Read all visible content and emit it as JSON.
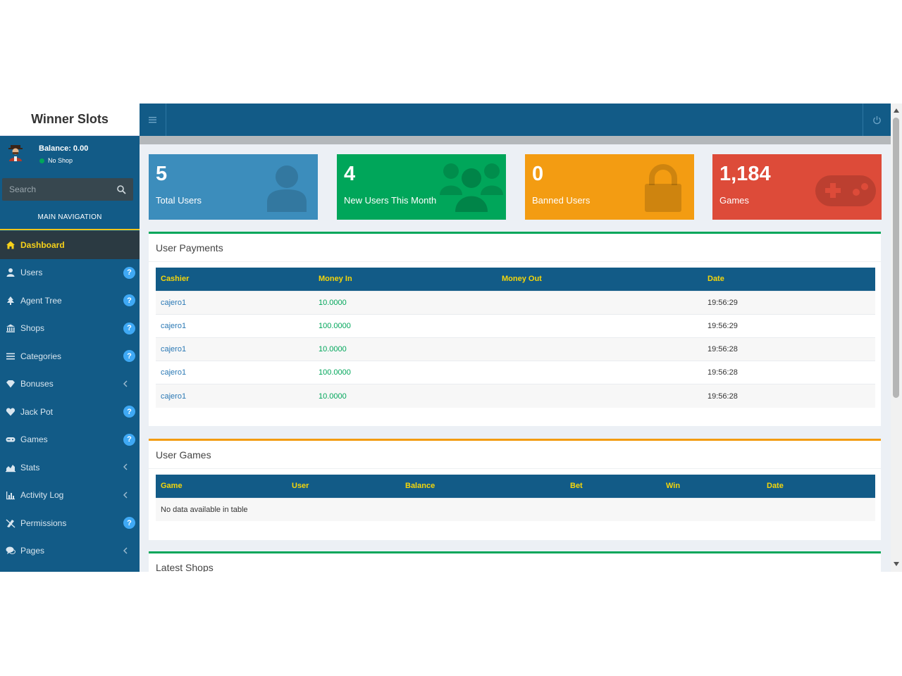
{
  "app": {
    "logo": "Winner Slots",
    "balance": "Balance: 0.00",
    "shop_status": "No Shop",
    "search_placeholder": "Search",
    "nav_header": "MAIN NAVIGATION"
  },
  "nav": [
    {
      "label": "Dashboard",
      "icon": "home-icon",
      "active": true,
      "suffix": "none"
    },
    {
      "label": "Users",
      "icon": "user-icon",
      "suffix": "help"
    },
    {
      "label": "Agent Tree",
      "icon": "tree-icon",
      "suffix": "help"
    },
    {
      "label": "Shops",
      "icon": "bank-icon",
      "suffix": "help"
    },
    {
      "label": "Categories",
      "icon": "list-icon",
      "suffix": "help"
    },
    {
      "label": "Bonuses",
      "icon": "diamond-icon",
      "suffix": "chevron"
    },
    {
      "label": "Jack Pot",
      "icon": "heart-diamond-icon",
      "suffix": "help"
    },
    {
      "label": "Games",
      "icon": "gamepad-icon",
      "suffix": "help"
    },
    {
      "label": "Stats",
      "icon": "area-chart-icon",
      "suffix": "chevron"
    },
    {
      "label": "Activity Log",
      "icon": "bar-chart-icon",
      "suffix": "chevron"
    },
    {
      "label": "Permissions",
      "icon": "permissions-icon",
      "suffix": "help"
    },
    {
      "label": "Pages",
      "icon": "comments-icon",
      "suffix": "chevron"
    }
  ],
  "help_badge": "?",
  "stats": [
    {
      "value": "5",
      "label": "Total Users",
      "color": "#3c8dbc",
      "icon": "user-icon"
    },
    {
      "value": "4",
      "label": "New Users This Month",
      "color": "#00a65a",
      "icon": "users-icon"
    },
    {
      "value": "0",
      "label": "Banned Users",
      "color": "#f39c12",
      "icon": "lock-icon"
    },
    {
      "value": "1,184",
      "label": "Games",
      "color": "#dd4b39",
      "icon": "gamepad-icon"
    }
  ],
  "user_payments": {
    "title": "User Payments",
    "columns": [
      "Cashier",
      "Money In",
      "Money Out",
      "Date"
    ],
    "rows": [
      {
        "cashier": "cajero1",
        "money_in": "10.0000",
        "money_out": "",
        "date": "19:56:29"
      },
      {
        "cashier": "cajero1",
        "money_in": "100.0000",
        "money_out": "",
        "date": "19:56:29"
      },
      {
        "cashier": "cajero1",
        "money_in": "10.0000",
        "money_out": "",
        "date": "19:56:28"
      },
      {
        "cashier": "cajero1",
        "money_in": "100.0000",
        "money_out": "",
        "date": "19:56:28"
      },
      {
        "cashier": "cajero1",
        "money_in": "10.0000",
        "money_out": "",
        "date": "19:56:28"
      }
    ]
  },
  "user_games": {
    "title": "User Games",
    "columns": [
      "Game",
      "User",
      "Balance",
      "Bet",
      "Win",
      "Date"
    ],
    "empty": "No data available in table"
  },
  "latest_shops": {
    "title": "Latest Shops"
  },
  "colors": {
    "primary": "#125b87",
    "accent_yellow": "#f5d60a",
    "green": "#00a65a",
    "orange": "#f39c12",
    "red": "#dd4b39",
    "blue": "#3c8dbc"
  }
}
